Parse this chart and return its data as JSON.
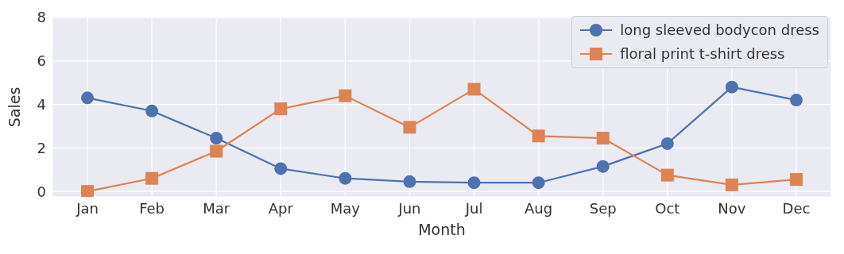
{
  "chart_data": {
    "type": "line",
    "xlabel": "Month",
    "ylabel": "Sales",
    "categories": [
      "Jan",
      "Feb",
      "Mar",
      "Apr",
      "May",
      "Jun",
      "Jul",
      "Aug",
      "Sep",
      "Oct",
      "Nov",
      "Dec"
    ],
    "series": [
      {
        "name": "long sleeved bodycon dress",
        "color": "#4c72b0",
        "marker": "circle",
        "values": [
          4.3,
          3.7,
          2.45,
          1.05,
          0.6,
          0.45,
          0.4,
          0.4,
          1.15,
          2.2,
          4.8,
          4.2
        ]
      },
      {
        "name": "floral print t-shirt dress",
        "color": "#dd8452",
        "marker": "square",
        "values": [
          0,
          0.6,
          1.85,
          3.8,
          4.4,
          2.95,
          4.7,
          2.55,
          2.45,
          0.75,
          0.3,
          0.55
        ]
      }
    ],
    "ylim": [
      -0.25,
      8
    ],
    "yticks": [
      0,
      2,
      4,
      6,
      8
    ],
    "grid": true,
    "legend": "top right",
    "line_style": "solid"
  }
}
